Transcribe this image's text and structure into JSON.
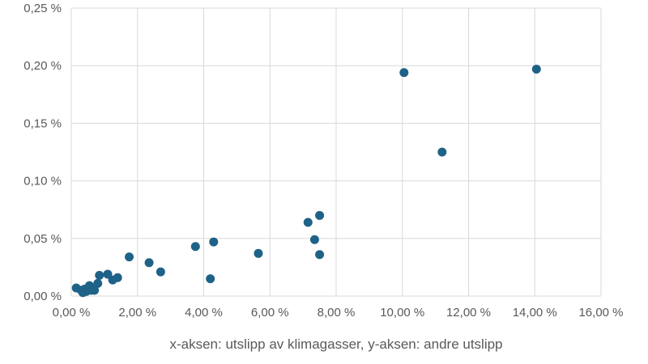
{
  "chart_data": {
    "type": "scatter",
    "title": "",
    "xlabel": "x-aksen: utslipp av klimagasser, y-aksen: andre utslipp",
    "ylabel": "",
    "xlim": [
      0,
      16
    ],
    "ylim": [
      0,
      0.25
    ],
    "x_ticks": [
      "0,00 %",
      "2,00 %",
      "4,00 %",
      "6,00 %",
      "8,00 %",
      "10,00 %",
      "12,00 %",
      "14,00 %",
      "16,00 %"
    ],
    "y_ticks": [
      "0,00 %",
      "0,05 %",
      "0,10 %",
      "0,15 %",
      "0,20 %",
      "0,25 %"
    ],
    "grid": true,
    "legend": "none",
    "marker_color": "#1f6287",
    "series": [
      {
        "points": [
          [
            0.15,
            0.007
          ],
          [
            0.3,
            0.005
          ],
          [
            0.35,
            0.003
          ],
          [
            0.4,
            0.006
          ],
          [
            0.45,
            0.004
          ],
          [
            0.5,
            0.007
          ],
          [
            0.55,
            0.009
          ],
          [
            0.6,
            0.005
          ],
          [
            0.65,
            0.006
          ],
          [
            0.7,
            0.005
          ],
          [
            0.8,
            0.011
          ],
          [
            0.85,
            0.018
          ],
          [
            1.1,
            0.019
          ],
          [
            1.25,
            0.014
          ],
          [
            1.4,
            0.016
          ],
          [
            1.75,
            0.034
          ],
          [
            2.35,
            0.029
          ],
          [
            2.7,
            0.021
          ],
          [
            3.75,
            0.043
          ],
          [
            4.2,
            0.015
          ],
          [
            4.3,
            0.047
          ],
          [
            5.65,
            0.037
          ],
          [
            7.15,
            0.064
          ],
          [
            7.35,
            0.049
          ],
          [
            7.5,
            0.07
          ],
          [
            7.5,
            0.036
          ],
          [
            10.05,
            0.194
          ],
          [
            11.2,
            0.125
          ],
          [
            14.05,
            0.197
          ]
        ]
      }
    ]
  }
}
